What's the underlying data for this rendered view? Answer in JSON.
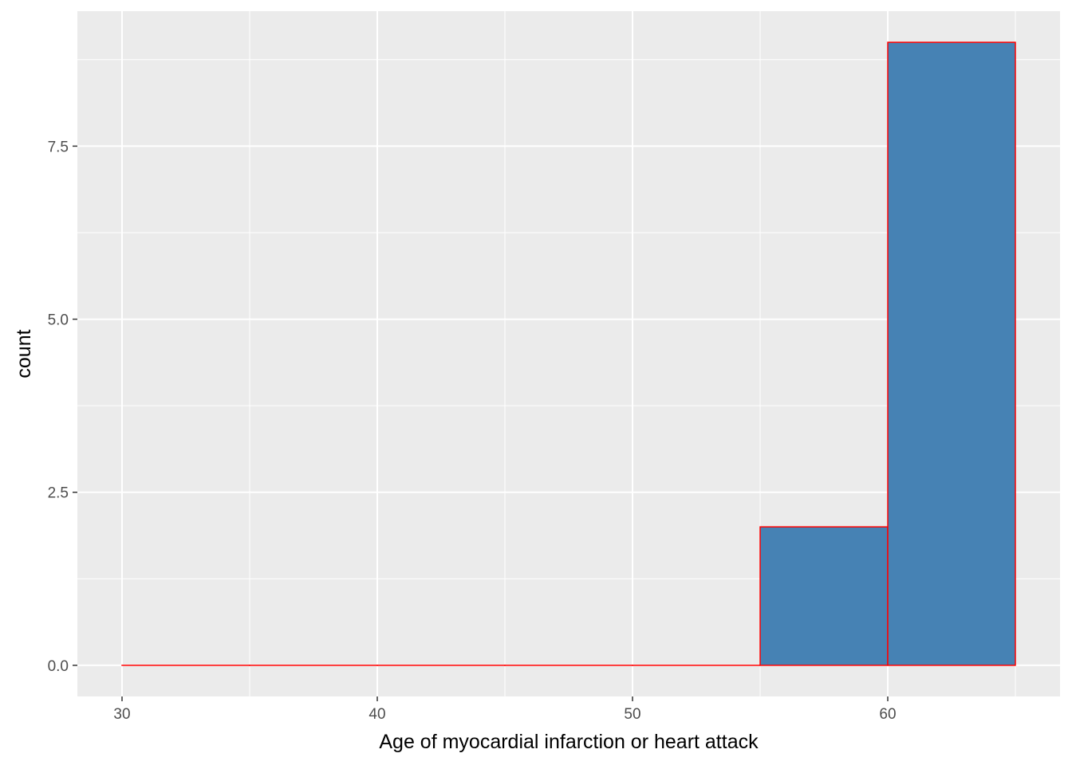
{
  "chart_data": {
    "type": "bar",
    "xlabel": "Age of myocardial infarction or heart attack",
    "ylabel": "count",
    "x_ticks": [
      "30",
      "40",
      "50",
      "60"
    ],
    "x_tick_values": [
      30,
      40,
      50,
      60
    ],
    "y_ticks": [
      "0.0",
      "2.5",
      "5.0",
      "7.5"
    ],
    "y_tick_values": [
      0,
      2.5,
      5,
      7.5
    ],
    "xlim": [
      28.25,
      66.75
    ],
    "ylim": [
      -0.45,
      9.45
    ],
    "bin_width": 5,
    "bins": [
      {
        "start": 30,
        "end": 35,
        "count": 0
      },
      {
        "start": 35,
        "end": 40,
        "count": 0
      },
      {
        "start": 40,
        "end": 45,
        "count": 0
      },
      {
        "start": 45,
        "end": 50,
        "count": 0
      },
      {
        "start": 50,
        "end": 55,
        "count": 0
      },
      {
        "start": 55,
        "end": 60,
        "count": 2
      },
      {
        "start": 60,
        "end": 65,
        "count": 9
      }
    ],
    "grid": true,
    "colors": {
      "fill": "#4682b4",
      "outline": "#ff0000",
      "panel_background": "#ebebeb",
      "grid": "#ffffff"
    }
  }
}
